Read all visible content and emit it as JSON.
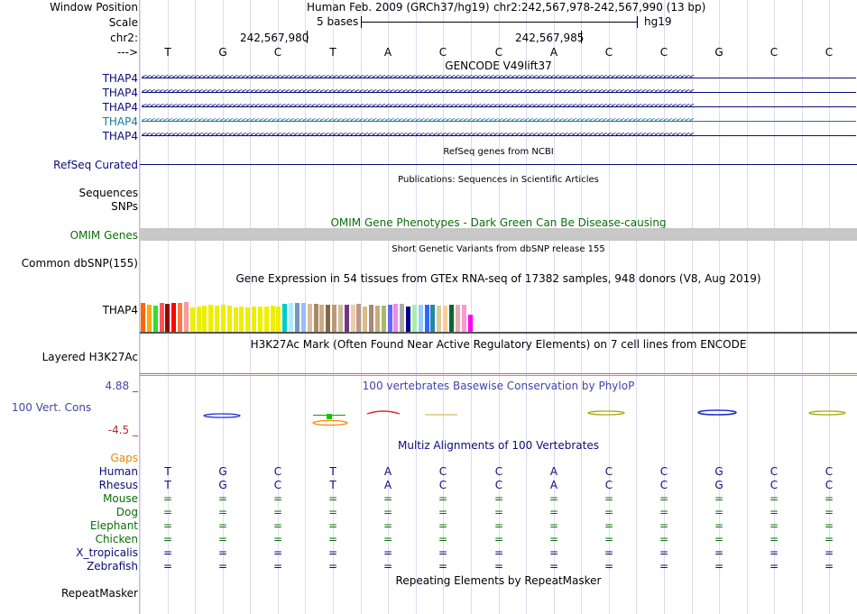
{
  "header": {
    "window_position_label": "Window Position",
    "scale_label": "Scale",
    "chrom_label": "chr2:",
    "arrow_label": "--->",
    "assembly_title": "Human Feb. 2009 (GRCh37/hg19)",
    "position": "chr2:242,567,978-242,567,990 (13 bp)",
    "scale_text": "5 bases",
    "scale_db": "hg19",
    "pos1": "242,567,980",
    "pos2": "242,567,985",
    "bases": [
      "T",
      "G",
      "C",
      "T",
      "A",
      "C",
      "C",
      "A",
      "C",
      "C",
      "G",
      "C",
      "C"
    ]
  },
  "gencode": {
    "title": "GENCODE V49lift37",
    "transcripts": [
      {
        "label": "THAP4",
        "color": "#0c0c78"
      },
      {
        "label": "THAP4",
        "color": "#0c0c78"
      },
      {
        "label": "THAP4",
        "color": "#0c0c78"
      },
      {
        "label": "THAP4",
        "color": "#1a7a9a"
      },
      {
        "label": "THAP4",
        "color": "#0c0c78"
      }
    ],
    "arrows": "<<<<<<<<<<<<<<<<<<<<<<<<<<<<<<<<<<<<<<<<<<<<<<<<<<<<<<<<<<<<<<<<<<<<<<<<<<<<<<<<<<<<<<<<<<<<<<<<<<<<<<<<<<<<<<<<<<<<<<<<<<<<<<<"
  },
  "refseq": {
    "title": "RefSeq genes from NCBI",
    "label": "RefSeq Curated"
  },
  "publications": {
    "title": "Publications: Sequences in Scientific Articles",
    "label1": "Sequences",
    "label2": "SNPs"
  },
  "omim": {
    "title": "OMIM Gene Phenotypes - Dark Green Can Be Disease-causing",
    "label": "OMIM Genes"
  },
  "dbsnp": {
    "title": "Short Genetic Variants from dbSNP release 155",
    "label": "Common dbSNP(155)"
  },
  "gtex": {
    "title": "Gene Expression in 54 tissues from GTEx RNA-seq of 17382 samples, 948 donors (V8, Aug 2019)",
    "label": "THAP4",
    "bars": [
      {
        "c": "#ff6600",
        "h": 0.62
      },
      {
        "c": "#ffaa00",
        "h": 0.58
      },
      {
        "c": "#33dd33",
        "h": 0.57
      },
      {
        "c": "#ff5555",
        "h": 0.62
      },
      {
        "c": "#990000",
        "h": 0.61
      },
      {
        "c": "#ff0000",
        "h": 0.62
      },
      {
        "c": "#ff7744",
        "h": 0.62
      },
      {
        "c": "#ff9999",
        "h": 0.64
      },
      {
        "c": "#eeee00",
        "h": 0.52
      },
      {
        "c": "#eeee00",
        "h": 0.55
      },
      {
        "c": "#eeee00",
        "h": 0.57
      },
      {
        "c": "#eeee00",
        "h": 0.58
      },
      {
        "c": "#eeee00",
        "h": 0.56
      },
      {
        "c": "#eeee00",
        "h": 0.58
      },
      {
        "c": "#eeee00",
        "h": 0.56
      },
      {
        "c": "#eeee00",
        "h": 0.52
      },
      {
        "c": "#eeee00",
        "h": 0.55
      },
      {
        "c": "#eeee00",
        "h": 0.53
      },
      {
        "c": "#eeee00",
        "h": 0.55
      },
      {
        "c": "#eeee00",
        "h": 0.54
      },
      {
        "c": "#eeee00",
        "h": 0.54
      },
      {
        "c": "#eeee00",
        "h": 0.56
      },
      {
        "c": "#eeee00",
        "h": 0.55
      },
      {
        "c": "#00cccc",
        "h": 0.6
      },
      {
        "c": "#aaeeff",
        "h": 0.62
      },
      {
        "c": "#7799bb",
        "h": 0.62
      },
      {
        "c": "#99bbff",
        "h": 0.62
      },
      {
        "c": "#ddbb99",
        "h": 0.61
      },
      {
        "c": "#aa8866",
        "h": 0.6
      },
      {
        "c": "#ccaa88",
        "h": 0.59
      },
      {
        "c": "#886644",
        "h": 0.59
      },
      {
        "c": "#bb9977",
        "h": 0.59
      },
      {
        "c": "#ccbb99",
        "h": 0.59
      },
      {
        "c": "#773388",
        "h": 0.59
      },
      {
        "c": "#eeccaa",
        "h": 0.59
      },
      {
        "c": "#bb9988",
        "h": 0.61
      },
      {
        "c": "#ddbb88",
        "h": 0.54
      },
      {
        "c": "#aa8877",
        "h": 0.59
      },
      {
        "c": "#ccaa77",
        "h": 0.57
      },
      {
        "c": "#aabb66",
        "h": 0.56
      },
      {
        "c": "#6666ff",
        "h": 0.59
      },
      {
        "c": "#ee88ee",
        "h": 0.61
      },
      {
        "c": "#aaaaaa",
        "h": 0.61
      },
      {
        "c": "#000088",
        "h": 0.55
      },
      {
        "c": "#aaeeaa",
        "h": 0.58
      },
      {
        "c": "#99ccff",
        "h": 0.59
      },
      {
        "c": "#3366ff",
        "h": 0.58
      },
      {
        "c": "#2288aa",
        "h": 0.58
      },
      {
        "c": "#ddcc99",
        "h": 0.56
      },
      {
        "c": "#ffcc99",
        "h": 0.56
      },
      {
        "c": "#006633",
        "h": 0.58
      },
      {
        "c": "#eeaaaa",
        "h": 0.59
      },
      {
        "c": "#ff99cc",
        "h": 0.59
      },
      {
        "c": "#ff00ff",
        "h": 0.37
      }
    ]
  },
  "h3k27ac": {
    "title": "H3K27Ac Mark (Often Found Near Active Regulatory Elements) on 7 cell lines from ENCODE",
    "label": "Layered H3K27Ac"
  },
  "phylop": {
    "title": "100 vertebrates Basewise Conservation by PhyloP",
    "label": "100 Vert. Cons",
    "max": "4.88 _",
    "min": "-4.5 _"
  },
  "multiz": {
    "title": "Multiz Alignments of 100 Vertebrates",
    "gaps_label": "Gaps",
    "species": [
      {
        "name": "Human",
        "color": "#0c0c78",
        "row": "T G C T A C C A C C G C C"
      },
      {
        "name": "Rhesus",
        "color": "#0c0c78",
        "row": "T G C T A C C A C C G C C"
      },
      {
        "name": "Mouse",
        "color": "#0a6e0a",
        "row": "= = = = = = = = = = = = ="
      },
      {
        "name": "Dog",
        "color": "#0a6e0a",
        "row": "= = = = = = = = = = = = ="
      },
      {
        "name": "Elephant",
        "color": "#0a6e0a",
        "row": "= = = = = = = = = = = = ="
      },
      {
        "name": "Chicken",
        "color": "#0a6e0a",
        "row": "= = = = = = = = = = = = ="
      },
      {
        "name": "X_tropicalis",
        "color": "#0c0c78",
        "row": "= = = = = = = = = = = = ="
      },
      {
        "name": "Zebrafish",
        "color": "#0c0c78",
        "row": "= = = = = = = = = = = = ="
      }
    ]
  },
  "repeatmasker": {
    "title": "Repeating Elements by RepeatMasker",
    "label": "RepeatMasker"
  },
  "colors": {
    "navy": "#0c0c78",
    "green": "#0a6e0a",
    "orange": "#e08a00",
    "phylop": "#4444aa",
    "red": "#b03030",
    "omim_bar": "#c8c8c8"
  }
}
